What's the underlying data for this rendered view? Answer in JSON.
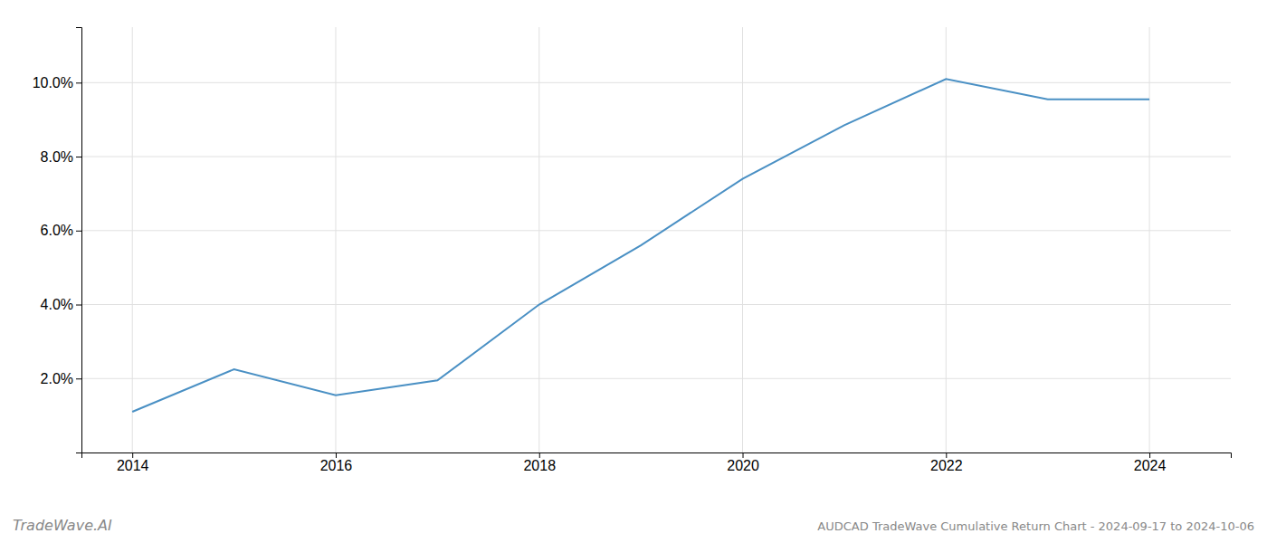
{
  "chart_data": {
    "type": "line",
    "title": "AUDCAD TradeWave Cumulative Return Chart - 2024-09-17 to 2024-10-06",
    "annotations": [
      "TradeWave.AI"
    ],
    "x": [
      2014,
      2015,
      2016,
      2017,
      2018,
      2019,
      2020,
      2021,
      2022,
      2023,
      2024
    ],
    "values": [
      1.1,
      2.25,
      1.55,
      1.95,
      4.0,
      5.6,
      7.4,
      8.85,
      10.1,
      9.55,
      9.55
    ],
    "color": "#4a90c4",
    "xlim": [
      2013.5,
      2024.8
    ],
    "ylim": [
      0.0,
      11.5
    ],
    "xticks": [
      2014,
      2016,
      2018,
      2020,
      2022,
      2024
    ],
    "yticks": [
      {
        "value": 2.0,
        "label": "2.0%"
      },
      {
        "value": 4.0,
        "label": "4.0%"
      },
      {
        "value": 6.0,
        "label": "6.0%"
      },
      {
        "value": 8.0,
        "label": "8.0%"
      },
      {
        "value": 10.0,
        "label": "10.0%"
      }
    ],
    "grid": true
  }
}
